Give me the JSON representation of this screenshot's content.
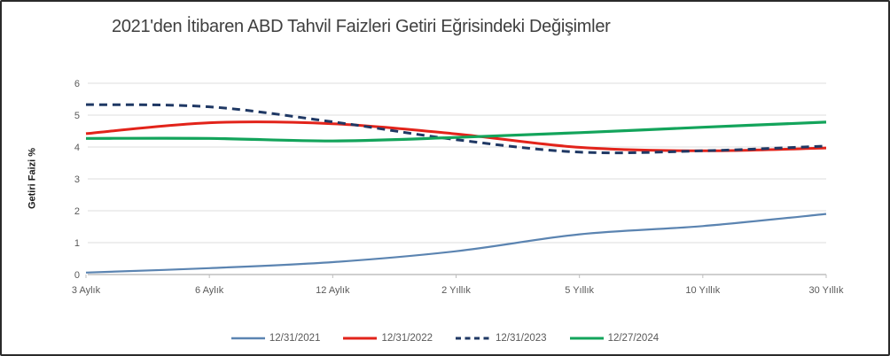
{
  "title": "2021'den İtibaren ABD Tahvil Faizleri Getiri Eğrisindeki Değişimler",
  "chart_data": {
    "type": "line",
    "title": "2021'den İtibaren ABD Tahvil Faizleri Getiri Eğrisindeki Değişimler",
    "categories": [
      "3 Aylık",
      "6 Aylık",
      "12 Aylık",
      "2 Yıllık",
      "5 Yıllık",
      "10 Yıllık",
      "30 Yıllık"
    ],
    "series": [
      {
        "name": "12/31/2021",
        "color": "#5B84B1",
        "style": "solid",
        "values": [
          0.06,
          0.2,
          0.39,
          0.73,
          1.26,
          1.52,
          1.9
        ]
      },
      {
        "name": "12/31/2022",
        "color": "#E2231A",
        "style": "solid",
        "values": [
          4.42,
          4.76,
          4.73,
          4.41,
          3.99,
          3.88,
          3.97
        ]
      },
      {
        "name": "12/31/2023",
        "color": "#1F3864",
        "style": "dashed",
        "values": [
          5.33,
          5.26,
          4.79,
          4.23,
          3.84,
          3.88,
          4.03
        ]
      },
      {
        "name": "12/27/2024",
        "color": "#13A45B",
        "style": "solid",
        "values": [
          4.27,
          4.27,
          4.19,
          4.3,
          4.45,
          4.62,
          4.78
        ]
      }
    ],
    "xlabel": "",
    "ylabel": "Getiri Faizi %",
    "ylim": [
      0,
      6
    ],
    "yticks": [
      0,
      1,
      2,
      3,
      4,
      5,
      6
    ],
    "grid": true,
    "legend_position": "bottom",
    "colors": {
      "gridline": "#DEDEDE",
      "axis": "#BFBFBF",
      "tick_text": "#595959",
      "title_text": "#3F3F3F"
    }
  }
}
